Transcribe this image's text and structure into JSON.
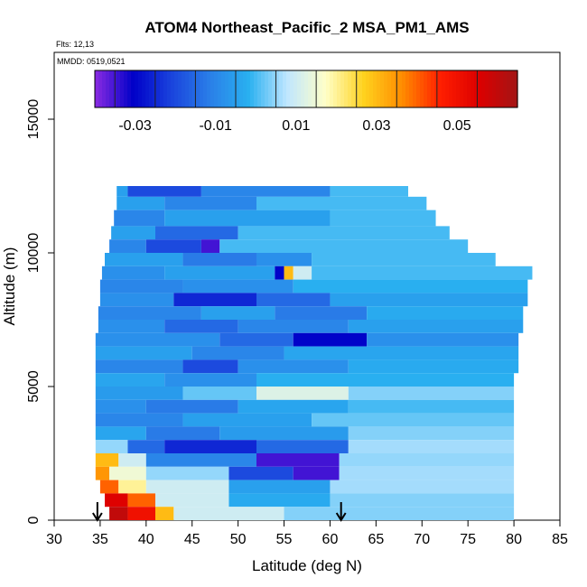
{
  "chart_data": {
    "type": "heatmap",
    "title": "ATOM4 Northeast_Pacific_2 MSA_PM1_AMS",
    "annotation_flights": "Flts: 12,13",
    "annotation_dates": "MMDD: 0519,0521",
    "xlabel": "Latitude (deg N)",
    "ylabel": "Altitude (m)",
    "xlim": [
      30,
      85
    ],
    "ylim": [
      0,
      17500
    ],
    "x_ticks": [
      "30",
      "35",
      "40",
      "45",
      "50",
      "55",
      "60",
      "65",
      "70",
      "75",
      "80",
      "85"
    ],
    "y_ticks": [
      "0",
      "5000",
      "10000",
      "15000"
    ],
    "colorbar": {
      "range": [
        -0.04,
        0.065
      ],
      "tick_labels": [
        "-0.03",
        "-0.01",
        "0.01",
        "0.03",
        "0.05"
      ],
      "tick_values": [
        -0.03,
        -0.01,
        0.01,
        0.03,
        0.05
      ],
      "colors": [
        "#8b2be2",
        "#0000c8",
        "#1a44dd",
        "#2a7fe8",
        "#29b0f0",
        "#bfe6ff",
        "#ffffc8",
        "#ffd21e",
        "#ff8c00",
        "#ff1e00",
        "#dc0000",
        "#a31515"
      ]
    },
    "markers": [
      {
        "type": "arrow",
        "latitude": 34.7
      },
      {
        "type": "arrow",
        "latitude": 61.2
      }
    ],
    "rows": [
      {
        "alt": [
          12100,
          12500
        ],
        "lat": [
          36.8,
          68.5
        ],
        "segments": [
          [
            36.8,
            38,
            -0.005
          ],
          [
            38,
            46,
            -0.02
          ],
          [
            46,
            60,
            -0.01
          ],
          [
            60,
            68.5,
            0.0
          ]
        ]
      },
      {
        "alt": [
          11600,
          12100
        ],
        "lat": [
          36.8,
          70.5
        ],
        "segments": [
          [
            36.8,
            42,
            -0.005
          ],
          [
            42,
            52,
            -0.01
          ],
          [
            52,
            70.5,
            0.0
          ]
        ]
      },
      {
        "alt": [
          11000,
          11600
        ],
        "lat": [
          36.5,
          71.5
        ],
        "segments": [
          [
            36.5,
            42,
            -0.01
          ],
          [
            42,
            60,
            -0.005
          ],
          [
            60,
            71.5,
            0.0
          ]
        ]
      },
      {
        "alt": [
          10500,
          11000
        ],
        "lat": [
          36.2,
          73.0
        ],
        "segments": [
          [
            36.2,
            41,
            -0.005
          ],
          [
            41,
            50,
            -0.015
          ],
          [
            50,
            73,
            0.0
          ]
        ]
      },
      {
        "alt": [
          10000,
          10500
        ],
        "lat": [
          36.0,
          75.0
        ],
        "segments": [
          [
            36,
            40,
            -0.01
          ],
          [
            40,
            46,
            -0.02
          ],
          [
            46,
            48,
            -0.035
          ],
          [
            48,
            75,
            0.0
          ]
        ]
      },
      {
        "alt": [
          9500,
          10000
        ],
        "lat": [
          35.5,
          78.0
        ],
        "segments": [
          [
            35.5,
            44,
            -0.005
          ],
          [
            44,
            52,
            -0.012
          ],
          [
            52,
            58,
            -0.008
          ],
          [
            58,
            78,
            0.0
          ]
        ]
      },
      {
        "alt": [
          9000,
          9500
        ],
        "lat": [
          35.2,
          82.0
        ],
        "segments": [
          [
            35.2,
            42,
            -0.008
          ],
          [
            42,
            54,
            -0.005
          ],
          [
            54,
            55,
            -0.03
          ],
          [
            55,
            56,
            0.03
          ],
          [
            56,
            58,
            0.01
          ],
          [
            58,
            82,
            0.0
          ]
        ]
      },
      {
        "alt": [
          8500,
          9000
        ],
        "lat": [
          35.0,
          81.5
        ],
        "segments": [
          [
            35,
            44,
            -0.01
          ],
          [
            44,
            56,
            -0.008
          ],
          [
            56,
            81.5,
            -0.002
          ]
        ]
      },
      {
        "alt": [
          8000,
          8500
        ],
        "lat": [
          35.0,
          81.5
        ],
        "segments": [
          [
            35,
            43,
            -0.008
          ],
          [
            43,
            52,
            -0.025
          ],
          [
            52,
            60,
            -0.015
          ],
          [
            60,
            81.5,
            -0.005
          ]
        ]
      },
      {
        "alt": [
          7500,
          8000
        ],
        "lat": [
          34.8,
          81.0
        ],
        "segments": [
          [
            34.8,
            46,
            -0.01
          ],
          [
            46,
            54,
            -0.005
          ],
          [
            54,
            64,
            -0.012
          ],
          [
            64,
            81,
            -0.003
          ]
        ]
      },
      {
        "alt": [
          7000,
          7500
        ],
        "lat": [
          34.8,
          81.0
        ],
        "segments": [
          [
            34.8,
            42,
            -0.008
          ],
          [
            42,
            50,
            -0.015
          ],
          [
            50,
            62,
            -0.01
          ],
          [
            62,
            81,
            -0.005
          ]
        ]
      },
      {
        "alt": [
          6500,
          7000
        ],
        "lat": [
          34.5,
          80.5
        ],
        "segments": [
          [
            34.5,
            48,
            -0.008
          ],
          [
            48,
            56,
            -0.015
          ],
          [
            56,
            64,
            -0.03
          ],
          [
            64,
            80.5,
            -0.008
          ]
        ]
      },
      {
        "alt": [
          6000,
          6500
        ],
        "lat": [
          34.5,
          80.5
        ],
        "segments": [
          [
            34.5,
            45,
            -0.005
          ],
          [
            45,
            55,
            -0.01
          ],
          [
            55,
            80.5,
            -0.004
          ]
        ]
      },
      {
        "alt": [
          5500,
          6000
        ],
        "lat": [
          34.5,
          80.5
        ],
        "segments": [
          [
            34.5,
            44,
            -0.01
          ],
          [
            44,
            50,
            -0.02
          ],
          [
            50,
            62,
            -0.008
          ],
          [
            62,
            80.5,
            -0.003
          ]
        ]
      },
      {
        "alt": [
          5000,
          5500
        ],
        "lat": [
          34.5,
          80.0
        ],
        "segments": [
          [
            34.5,
            42,
            -0.004
          ],
          [
            42,
            52,
            -0.008
          ],
          [
            52,
            80,
            -0.002
          ]
        ]
      },
      {
        "alt": [
          4500,
          5000
        ],
        "lat": [
          34.5,
          80.0
        ],
        "segments": [
          [
            34.5,
            44,
            -0.006
          ],
          [
            44,
            52,
            0.002
          ],
          [
            52,
            62,
            0.012
          ],
          [
            62,
            80,
            0.004
          ]
        ]
      },
      {
        "alt": [
          4000,
          4500
        ],
        "lat": [
          34.5,
          80.0
        ],
        "segments": [
          [
            34.5,
            40,
            -0.008
          ],
          [
            40,
            50,
            -0.012
          ],
          [
            50,
            62,
            -0.004
          ],
          [
            62,
            80,
            0.0
          ]
        ]
      },
      {
        "alt": [
          3500,
          4000
        ],
        "lat": [
          34.5,
          80.0
        ],
        "segments": [
          [
            34.5,
            44,
            -0.01
          ],
          [
            44,
            58,
            -0.005
          ],
          [
            58,
            80,
            0.002
          ]
        ]
      },
      {
        "alt": [
          3000,
          3500
        ],
        "lat": [
          34.5,
          80.0
        ],
        "segments": [
          [
            34.5,
            40,
            -0.004
          ],
          [
            40,
            48,
            -0.012
          ],
          [
            48,
            62,
            -0.006
          ],
          [
            62,
            80,
            0.004
          ]
        ]
      },
      {
        "alt": [
          2500,
          3000
        ],
        "lat": [
          34.5,
          80.0
        ],
        "segments": [
          [
            34.5,
            38,
            0.005
          ],
          [
            38,
            42,
            -0.015
          ],
          [
            42,
            52,
            -0.025
          ],
          [
            52,
            62,
            -0.015
          ],
          [
            62,
            80,
            0.006
          ]
        ]
      },
      {
        "alt": [
          2000,
          2500
        ],
        "lat": [
          34.5,
          80.0
        ],
        "segments": [
          [
            34.5,
            37,
            0.03
          ],
          [
            37,
            40,
            0.01
          ],
          [
            40,
            52,
            -0.01
          ],
          [
            52,
            61,
            -0.035
          ],
          [
            61,
            80,
            0.005
          ]
        ]
      },
      {
        "alt": [
          1500,
          2000
        ],
        "lat": [
          34.5,
          80.0
        ],
        "segments": [
          [
            34.5,
            36,
            0.035
          ],
          [
            36,
            40,
            0.015
          ],
          [
            40,
            49,
            0.005
          ],
          [
            49,
            56,
            -0.02
          ],
          [
            56,
            61,
            -0.035
          ],
          [
            61,
            80,
            0.006
          ]
        ]
      },
      {
        "alt": [
          1000,
          1500
        ],
        "lat": [
          35.0,
          80.0
        ],
        "segments": [
          [
            35,
            37,
            0.04
          ],
          [
            37,
            40,
            0.02
          ],
          [
            40,
            49,
            0.01
          ],
          [
            49,
            60,
            -0.005
          ],
          [
            60,
            80,
            0.006
          ]
        ]
      },
      {
        "alt": [
          500,
          1000
        ],
        "lat": [
          35.5,
          80.0
        ],
        "segments": [
          [
            35.5,
            38,
            0.055
          ],
          [
            38,
            41,
            0.04
          ],
          [
            41,
            49,
            0.01
          ],
          [
            49,
            60,
            -0.003
          ],
          [
            60,
            80,
            0.004
          ]
        ]
      },
      {
        "alt": [
          0,
          500
        ],
        "lat": [
          36.0,
          80.0
        ],
        "segments": [
          [
            36,
            38,
            0.06
          ],
          [
            38,
            41,
            0.05
          ],
          [
            41,
            43,
            0.03
          ],
          [
            43,
            55,
            0.01
          ],
          [
            55,
            80,
            0.004
          ]
        ]
      }
    ]
  }
}
